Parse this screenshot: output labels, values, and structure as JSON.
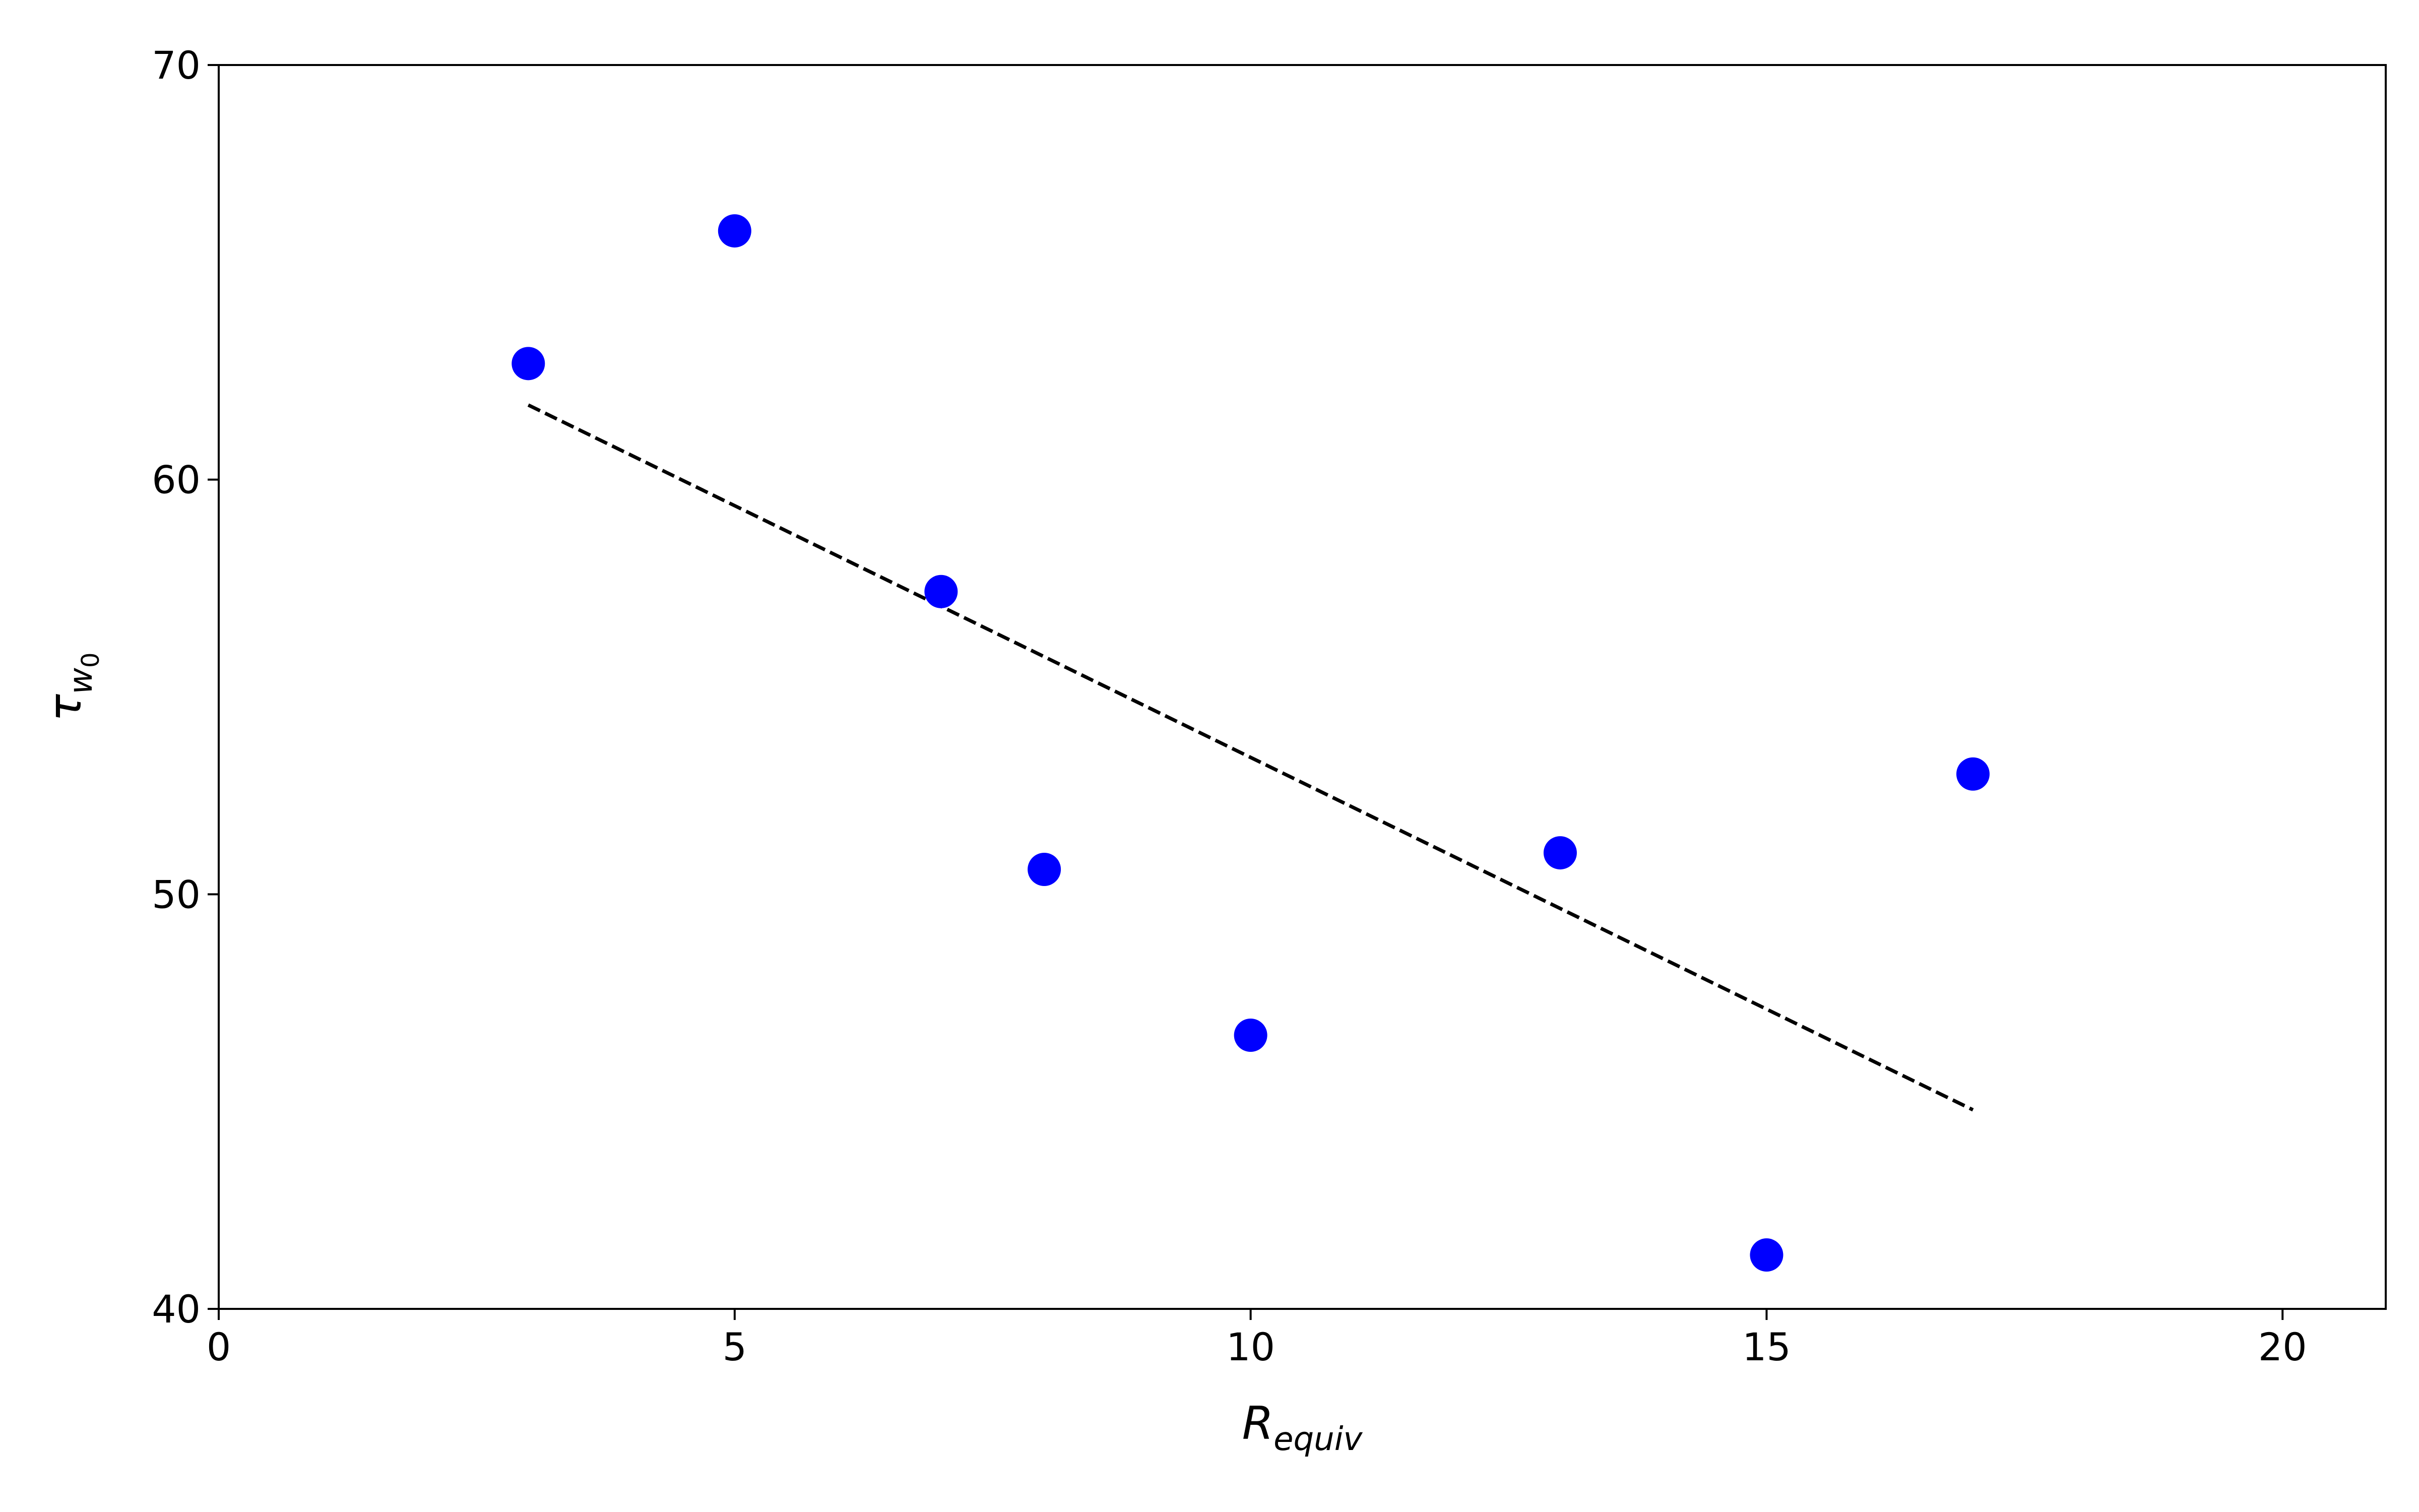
{
  "chart_data": {
    "type": "scatter",
    "title": "",
    "xlabel": {
      "base": "R",
      "subscript": "equiv"
    },
    "ylabel": {
      "base": "τ",
      "subscript": "w",
      "subsubscript": "0"
    },
    "xlim": [
      0,
      21
    ],
    "ylim": [
      40,
      70
    ],
    "xticks": [
      0,
      5,
      10,
      15,
      20
    ],
    "yticks": [
      40,
      50,
      60,
      70
    ],
    "xtick_labels": [
      "0",
      "5",
      "10",
      "15",
      "20"
    ],
    "ytick_labels": [
      "40",
      "50",
      "60",
      "70"
    ],
    "grid": false,
    "series": [
      {
        "values": [
          {
            "x": 3,
            "y": 62.8
          },
          {
            "x": 5,
            "y": 66.0
          },
          {
            "x": 7,
            "y": 57.3
          },
          {
            "x": 8,
            "y": 50.6
          },
          {
            "x": 10,
            "y": 46.6
          },
          {
            "x": 13,
            "y": 51.0
          },
          {
            "x": 15,
            "y": 41.3
          },
          {
            "x": 17,
            "y": 52.9
          }
        ],
        "color": "#0000ff",
        "marker": "circle"
      }
    ],
    "trendline": {
      "style": "dashed",
      "color": "#000000",
      "x": [
        3,
        17
      ],
      "y": [
        61.8,
        44.8
      ]
    }
  }
}
